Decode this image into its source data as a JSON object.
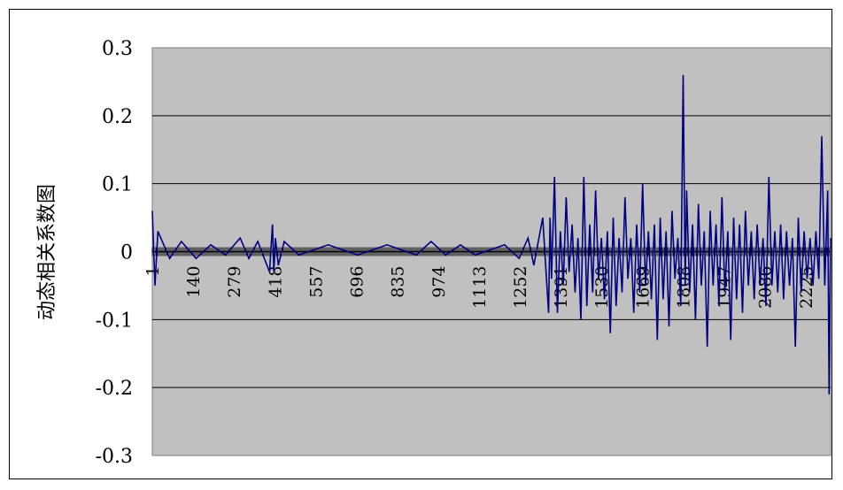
{
  "chart_data": {
    "type": "line",
    "title": "",
    "ylabel": "动态相关系数图",
    "xlabel": "",
    "ylim": [
      -0.3,
      0.3
    ],
    "y_ticks": [
      "0.3",
      "0.2",
      "0.1",
      "0",
      "-0.1",
      "-0.2",
      "-0.3"
    ],
    "x_ticks": [
      "1",
      "140",
      "279",
      "418",
      "557",
      "696",
      "835",
      "974",
      "1113",
      "1252",
      "1391",
      "1530",
      "1669",
      "1808",
      "1947",
      "2086",
      "2225"
    ],
    "x_count": 2310,
    "series": [
      {
        "color": "#000080",
        "x": [
          1,
          10,
          20,
          40,
          60,
          100,
          150,
          200,
          250,
          300,
          330,
          360,
          400,
          410,
          415,
          420,
          430,
          450,
          500,
          600,
          700,
          800,
          900,
          950,
          1000,
          1050,
          1100,
          1200,
          1250,
          1280,
          1300,
          1330,
          1350,
          1355,
          1360,
          1370,
          1380,
          1390,
          1400,
          1410,
          1420,
          1430,
          1440,
          1450,
          1460,
          1470,
          1480,
          1490,
          1500,
          1510,
          1520,
          1530,
          1540,
          1550,
          1560,
          1570,
          1580,
          1590,
          1600,
          1610,
          1620,
          1630,
          1640,
          1650,
          1660,
          1670,
          1680,
          1690,
          1700,
          1710,
          1720,
          1730,
          1740,
          1750,
          1760,
          1770,
          1780,
          1790,
          1800,
          1808,
          1815,
          1820,
          1830,
          1840,
          1850,
          1860,
          1870,
          1880,
          1890,
          1900,
          1910,
          1920,
          1930,
          1940,
          1950,
          1960,
          1970,
          1980,
          1990,
          2000,
          2010,
          2020,
          2030,
          2040,
          2050,
          2060,
          2070,
          2080,
          2090,
          2100,
          2110,
          2120,
          2130,
          2140,
          2150,
          2160,
          2170,
          2180,
          2190,
          2200,
          2210,
          2220,
          2230,
          2240,
          2250,
          2260,
          2270,
          2280,
          2290,
          2300,
          2305,
          2310
        ],
        "values": [
          0.06,
          -0.05,
          0.03,
          0.01,
          -0.01,
          0.015,
          -0.01,
          0.01,
          -0.005,
          0.02,
          -0.01,
          0.015,
          -0.03,
          0.04,
          -0.03,
          0.02,
          -0.02,
          0.015,
          -0.005,
          0.01,
          -0.005,
          0.01,
          -0.005,
          0.015,
          -0.005,
          0.01,
          -0.005,
          0.01,
          -0.01,
          0.02,
          -0.02,
          0.05,
          -0.09,
          0.05,
          -0.04,
          0.11,
          -0.09,
          0.03,
          -0.05,
          0.08,
          -0.03,
          0.04,
          -0.06,
          0.02,
          -0.1,
          0.11,
          -0.08,
          0.04,
          -0.06,
          0.09,
          -0.04,
          0.02,
          -0.07,
          0.03,
          -0.12,
          0.05,
          -0.08,
          0.02,
          -0.06,
          0.08,
          -0.04,
          0.02,
          -0.09,
          0.04,
          -0.06,
          0.1,
          -0.05,
          0.03,
          -0.07,
          0.04,
          -0.13,
          0.05,
          -0.07,
          0.03,
          -0.11,
          0.06,
          -0.04,
          0.02,
          -0.08,
          0.26,
          -0.05,
          0.09,
          -0.06,
          0.04,
          -0.1,
          0.07,
          -0.05,
          0.03,
          -0.14,
          0.06,
          -0.05,
          0.04,
          -0.08,
          0.08,
          -0.06,
          0.03,
          -0.13,
          0.05,
          -0.07,
          0.04,
          -0.09,
          0.06,
          -0.05,
          0.03,
          -0.07,
          0.04,
          -0.05,
          0.02,
          -0.08,
          0.11,
          -0.05,
          0.03,
          -0.06,
          0.04,
          -0.07,
          0.03,
          -0.05,
          0.02,
          -0.14,
          0.05,
          -0.06,
          0.03,
          -0.04,
          0.02,
          -0.05,
          0.03,
          -0.04,
          0.17,
          -0.05,
          0.09,
          -0.21,
          0.02
        ]
      }
    ],
    "grid": true,
    "plot_background": "#c0c0c0",
    "legend": "none"
  }
}
